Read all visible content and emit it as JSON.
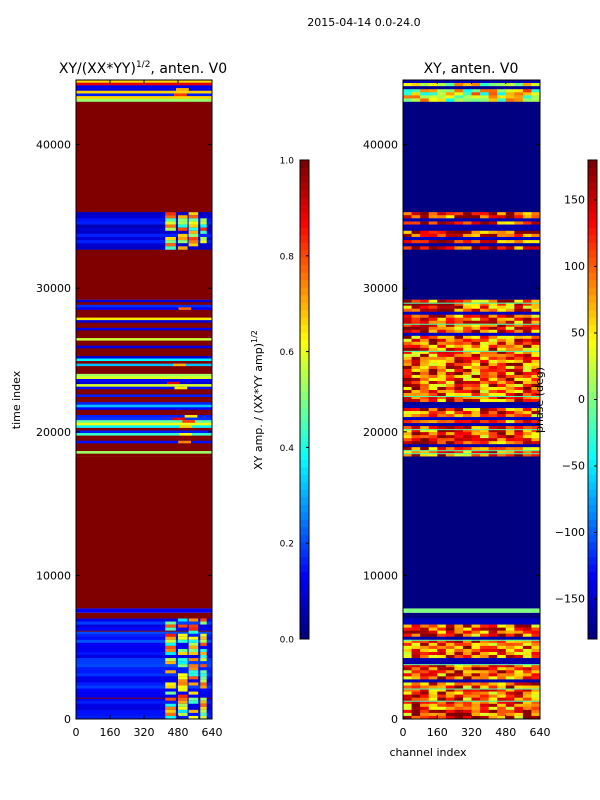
{
  "suptitle": "2015-04-14 0.0-24.0",
  "chart_data": [
    {
      "type": "heatmap",
      "title": "XY/(XX*YY)",
      "title_superscript": "1/2",
      "title_suffix": ", anten. V0",
      "xlabel": "",
      "ylabel": "time index",
      "xlim": [
        0,
        640
      ],
      "ylim": [
        0,
        44500
      ],
      "xticks": [
        0,
        160,
        320,
        480,
        640
      ],
      "xtick_labels": [
        "0",
        "160",
        "320",
        "480",
        "640"
      ],
      "yticks": [
        0,
        10000,
        20000,
        30000,
        40000
      ],
      "ytick_labels": [
        "0",
        "10000",
        "20000",
        "30000",
        "40000"
      ],
      "colorbar": {
        "label": "XY amp. / (XX*YY amp)",
        "label_superscript": "1/2",
        "range": [
          0.0,
          1.0
        ],
        "ticks": [
          0.0,
          0.2,
          0.4,
          0.6,
          0.8,
          1.0
        ],
        "tick_labels": [
          "0.0",
          "0.2",
          "0.4",
          "0.6",
          "0.8",
          "1.0"
        ],
        "colormap": "jet"
      },
      "bands": [
        {
          "t0": 0,
          "t1": 7000,
          "value": 0.15,
          "pattern": "active",
          "hi": 0.75
        },
        {
          "t0": 7000,
          "t1": 7400,
          "value": 1.0
        },
        {
          "t0": 7400,
          "t1": 7700,
          "value": 0.12
        },
        {
          "t0": 7700,
          "t1": 18300,
          "value": 1.0
        },
        {
          "t0": 18300,
          "t1": 23500,
          "value": 0.7,
          "pattern": "stripes",
          "hi": 1.0
        },
        {
          "t0": 23500,
          "t1": 29200,
          "value": 0.95,
          "pattern": "stripes",
          "hi": 1.0
        },
        {
          "t0": 29200,
          "t1": 32700,
          "value": 1.0
        },
        {
          "t0": 32700,
          "t1": 35300,
          "value": 0.1,
          "pattern": "active",
          "hi": 0.75
        },
        {
          "t0": 35300,
          "t1": 43000,
          "value": 1.0
        },
        {
          "t0": 43000,
          "t1": 44500,
          "value": 0.5,
          "pattern": "stripes",
          "hi": 0.9
        }
      ]
    },
    {
      "type": "heatmap",
      "title": "XY, anten. V0",
      "xlabel": "channel index",
      "ylabel": "",
      "xlim": [
        0,
        640
      ],
      "ylim": [
        0,
        44500
      ],
      "xticks": [
        0,
        160,
        320,
        480,
        640
      ],
      "xtick_labels": [
        "0",
        "160",
        "320",
        "480",
        "640"
      ],
      "yticks": [
        0,
        10000,
        20000,
        30000,
        40000
      ],
      "ytick_labels": [
        "0",
        "10000",
        "20000",
        "30000",
        "40000"
      ],
      "colorbar": {
        "label": "phase (deg)",
        "range": [
          -180,
          180
        ],
        "ticks": [
          -150,
          -100,
          -50,
          0,
          50,
          100,
          150
        ],
        "tick_labels": [
          "−150",
          "−100",
          "−50",
          "0",
          "50",
          "100",
          "150"
        ],
        "colormap": "jet"
      },
      "bands": [
        {
          "t0": 0,
          "t1": 7000,
          "value": 0.8,
          "pattern": "phase"
        },
        {
          "t0": 7000,
          "t1": 7400,
          "value": 0.0
        },
        {
          "t0": 7400,
          "t1": 7700,
          "value": 0.5
        },
        {
          "t0": 7700,
          "t1": 18300,
          "value": 0.0
        },
        {
          "t0": 18300,
          "t1": 29200,
          "value": 0.8,
          "pattern": "phase"
        },
        {
          "t0": 29200,
          "t1": 32700,
          "value": 0.0
        },
        {
          "t0": 32700,
          "t1": 35300,
          "value": 0.85,
          "pattern": "phase"
        },
        {
          "t0": 35300,
          "t1": 43000,
          "value": 0.0
        },
        {
          "t0": 43000,
          "t1": 44500,
          "value": 0.6,
          "pattern": "phase"
        }
      ]
    }
  ]
}
